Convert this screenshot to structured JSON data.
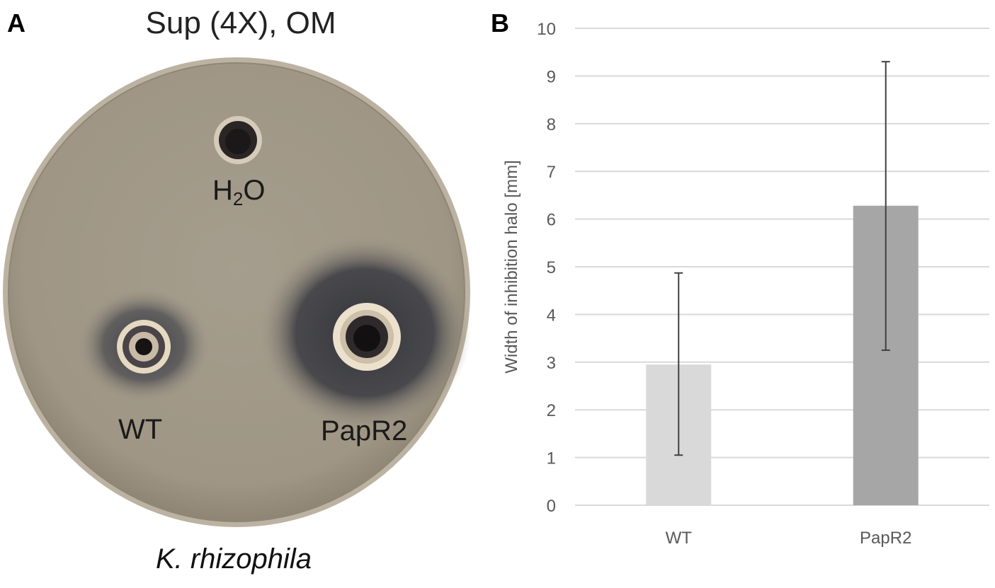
{
  "panel_a": {
    "letter": "A",
    "title": "Sup (4X), OM",
    "organism": "K. rhizophila",
    "wells": [
      {
        "label_main": "H",
        "label_sub": "2",
        "label_tail": "O",
        "halo": "none"
      },
      {
        "label_main": "WT",
        "halo": "small"
      },
      {
        "label_main": "PapR2",
        "halo": "large"
      }
    ],
    "colors": {
      "agar": "#a39a89",
      "rim": "#bdb3a3",
      "halo": "#3f4046"
    }
  },
  "panel_b": {
    "letter": "B"
  },
  "chart_data": {
    "type": "bar",
    "categories": [
      "WT",
      "PapR2"
    ],
    "values": [
      2.95,
      6.28
    ],
    "error_bars": [
      {
        "low": 1.05,
        "high": 4.87
      },
      {
        "low": 3.25,
        "high": 9.3
      }
    ],
    "colors": [
      "#d9d9d9",
      "#a6a6a6"
    ],
    "title": "",
    "xlabel": "",
    "ylabel": "Width of inhibition halo [mm]",
    "ylim": [
      0,
      10
    ],
    "yticks": [
      "0",
      "1",
      "2",
      "3",
      "4",
      "5",
      "6",
      "7",
      "8",
      "9",
      "10"
    ],
    "grid": true,
    "gridline_color": "#d9d9d9"
  }
}
